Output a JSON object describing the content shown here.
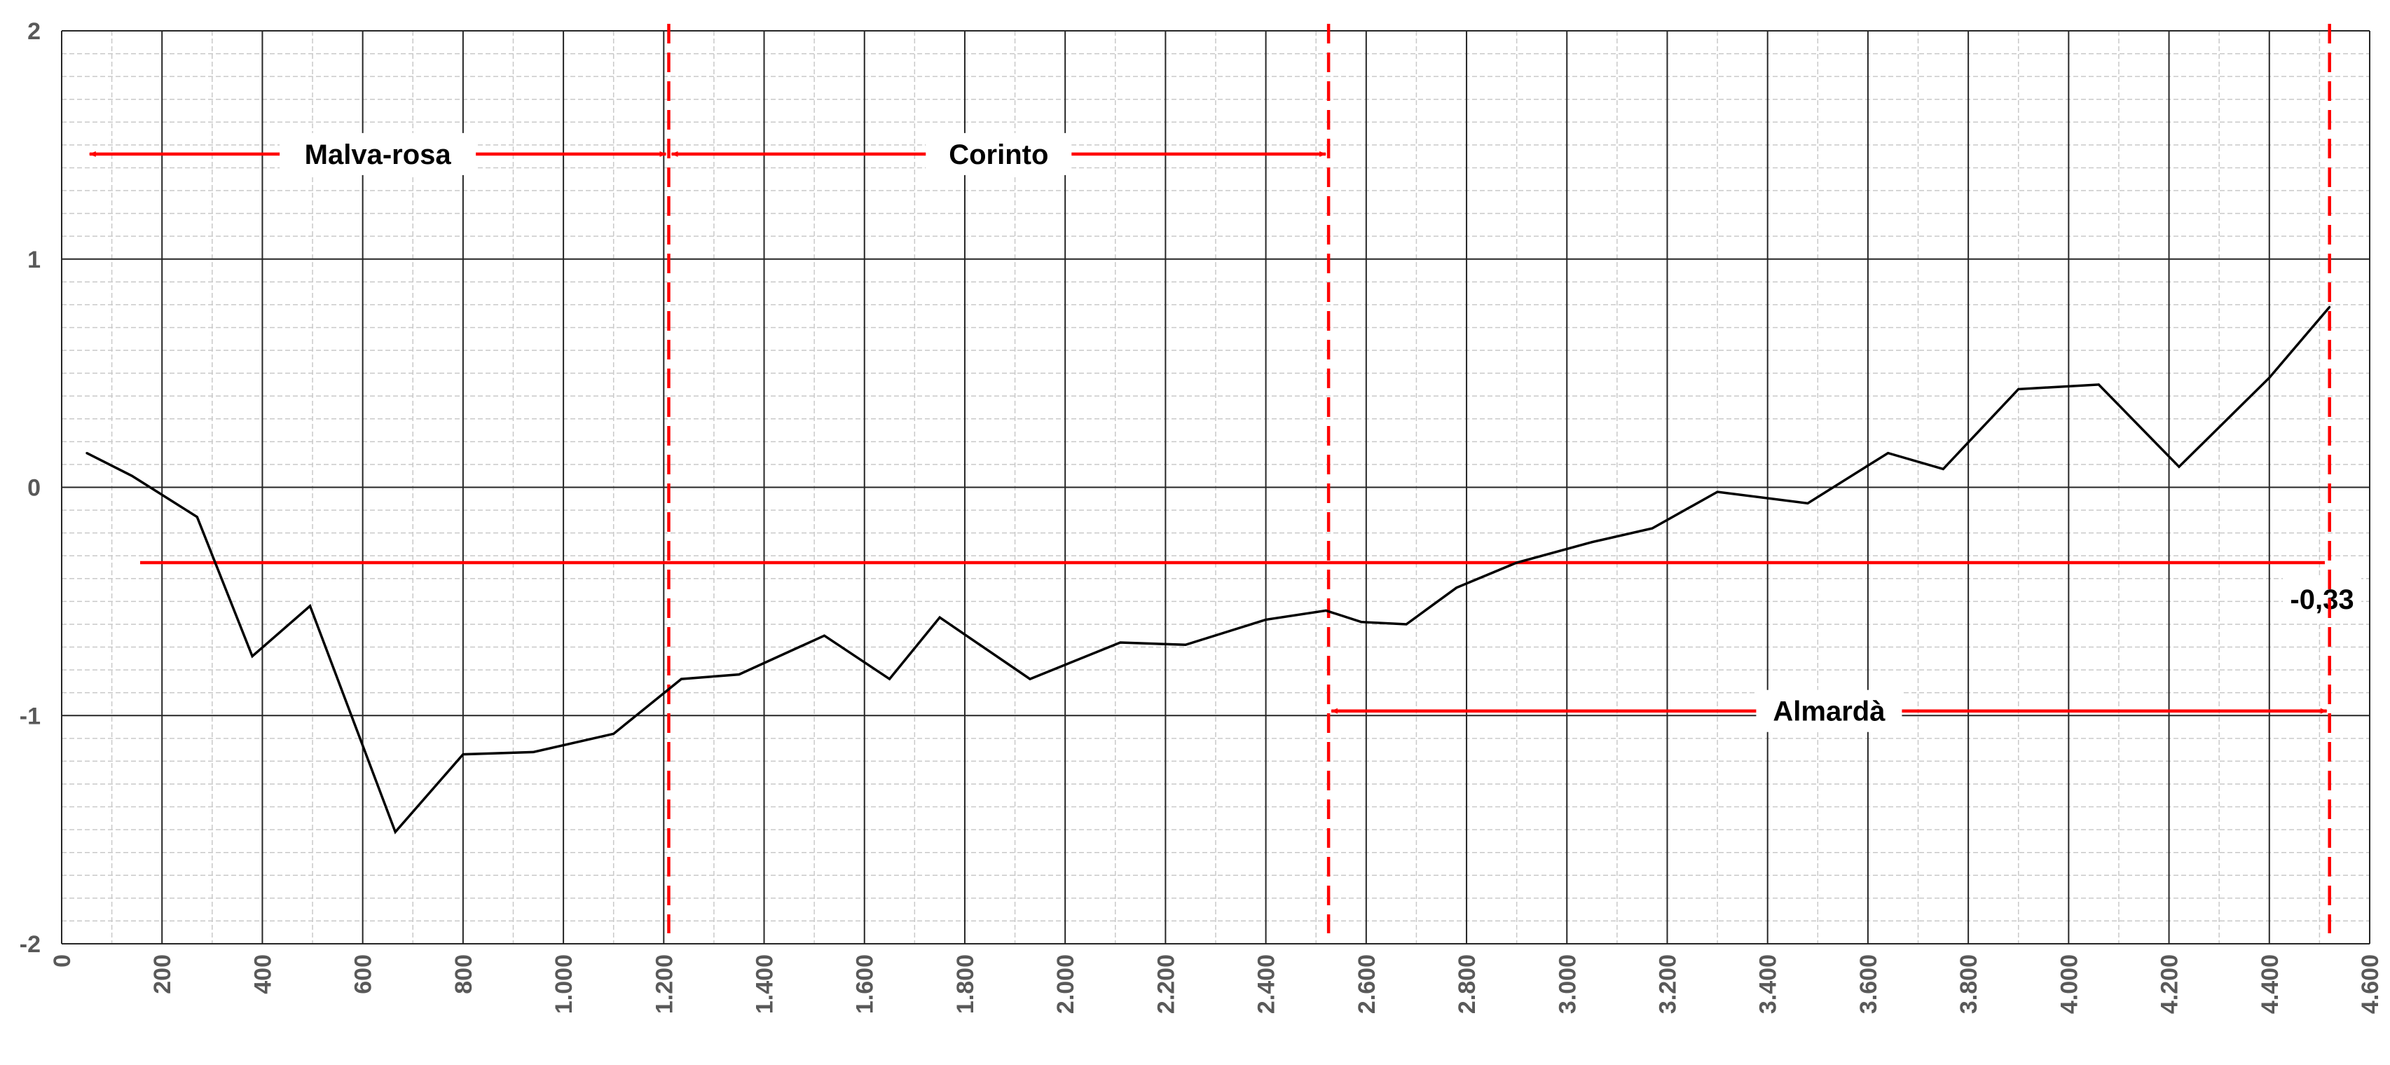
{
  "chart_data": {
    "type": "line",
    "title": "",
    "xlabel": "",
    "ylabel": "",
    "xlim": [
      0,
      4600
    ],
    "ylim": [
      -2,
      2
    ],
    "x_tick_values": [
      0,
      200,
      400,
      600,
      800,
      1000,
      1200,
      1400,
      1600,
      1800,
      2000,
      2200,
      2400,
      2600,
      2800,
      3000,
      3200,
      3400,
      3600,
      3800,
      4000,
      4200,
      4400,
      4600
    ],
    "x_tick_labels": [
      "0",
      "200",
      "400",
      "600",
      "800",
      "1.000",
      "1.200",
      "1.400",
      "1.600",
      "1.800",
      "2.000",
      "2.200",
      "2.400",
      "2.600",
      "2.800",
      "3.000",
      "3.200",
      "3.400",
      "3.600",
      "3.800",
      "4.000",
      "4.200",
      "4.400",
      "4.600"
    ],
    "y_tick_values": [
      2,
      1,
      0,
      -1,
      -2
    ],
    "y_tick_labels": [
      "2",
      "1",
      "0",
      "-1",
      "-2"
    ],
    "grid": true,
    "series": [
      {
        "color": "#000000",
        "x": [
          50,
          140,
          270,
          380,
          495,
          665,
          800,
          940,
          1100,
          1235,
          1350,
          1520,
          1650,
          1750,
          1930,
          2110,
          2240,
          2400,
          2520,
          2590,
          2680,
          2780,
          2900,
          3050,
          3170,
          3300,
          3480,
          3640,
          3750,
          3900,
          4060,
          4220,
          4400,
          4520
        ],
        "y": [
          0.15,
          0.05,
          -0.13,
          -0.74,
          -0.52,
          -1.51,
          -1.17,
          -1.16,
          -1.08,
          -0.84,
          -0.82,
          -0.65,
          -0.84,
          -0.57,
          -0.84,
          -0.68,
          -0.69,
          -0.58,
          -0.54,
          -0.59,
          -0.6,
          -0.44,
          -0.33,
          -0.24,
          -0.18,
          -0.02,
          -0.07,
          0.15,
          0.08,
          0.43,
          0.45,
          0.09,
          0.48,
          0.79
        ]
      }
    ],
    "reference_line": {
      "y": -0.33,
      "label": "-0,33",
      "color": "#ff0000"
    },
    "vertical_markers": [
      {
        "x": 1210,
        "color": "#ff0000"
      },
      {
        "x": 2525,
        "color": "#ff0000"
      },
      {
        "x": 4520,
        "color": "#ff0000"
      }
    ],
    "regions": [
      {
        "label": "Malva-rosa",
        "x_start": 50,
        "x_end": 1210,
        "y": 1.46,
        "color": "#ff0000"
      },
      {
        "label": "Corinto",
        "x_start": 1210,
        "x_end": 2525,
        "y": 1.46,
        "color": "#ff0000"
      },
      {
        "label": "Almardà",
        "x_start": 2525,
        "x_end": 4520,
        "y": -0.98,
        "color": "#ff0000"
      }
    ]
  }
}
